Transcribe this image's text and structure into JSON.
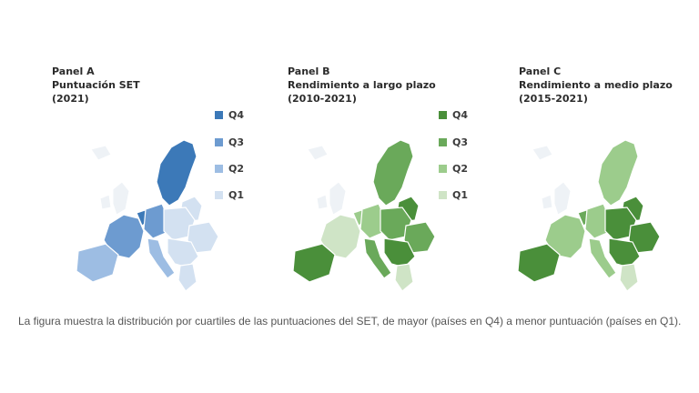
{
  "panels": [
    {
      "label": "Panel A",
      "title": "Puntuación SET",
      "period": "(2021)",
      "colors": {
        "Q4": "#3c79b8",
        "Q3": "#6d9bd0",
        "Q2": "#9dbde3",
        "Q1": "#d3e1f1"
      },
      "regions": {
        "nordic": "Q4",
        "baltic": "Q1",
        "west": "Q3",
        "benelux": "Q4",
        "germany": "Q3",
        "central": "Q1",
        "east": "Q1",
        "iberia": "Q2",
        "italy": "Q2",
        "balkans": "Q1",
        "greece": "Q1"
      }
    },
    {
      "label": "Panel B",
      "title": "Rendimiento a largo plazo",
      "period": "(2010-2021)",
      "colors": {
        "Q4": "#4a8f3a",
        "Q3": "#6aa95a",
        "Q2": "#9ccc8c",
        "Q1": "#cfe4c6"
      },
      "regions": {
        "nordic": "Q3",
        "baltic": "Q4",
        "west": "Q1",
        "benelux": "Q2",
        "germany": "Q2",
        "central": "Q3",
        "east": "Q3",
        "iberia": "Q4",
        "italy": "Q3",
        "balkans": "Q4",
        "greece": "Q1"
      }
    },
    {
      "label": "Panel C",
      "title": "Rendimiento a medio plazo",
      "period": "(2015-2021)",
      "colors": {
        "Q4": "#4a8f3a",
        "Q3": "#6aa95a",
        "Q2": "#9ccc8c",
        "Q1": "#cfe4c6"
      },
      "regions": {
        "nordic": "Q2",
        "baltic": "Q4",
        "west": "Q2",
        "benelux": "Q3",
        "germany": "Q2",
        "central": "Q4",
        "east": "Q4",
        "iberia": "Q4",
        "italy": "Q2",
        "balkans": "Q4",
        "greece": "Q1"
      }
    }
  ],
  "legend_a": [
    "Q4",
    "Q3",
    "Q2",
    "Q1"
  ],
  "legend_bc": [
    "Q4",
    "Q3",
    "Q2",
    "Q1"
  ],
  "caption": "La figura muestra la distribución por cuartiles de las puntuaciones del SET, de mayor (países en Q4) a menor puntuación (países en Q1)."
}
